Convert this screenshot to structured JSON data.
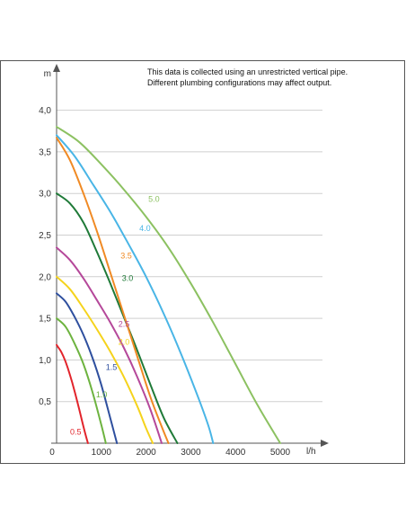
{
  "chart_data": {
    "type": "line",
    "title": "",
    "note_lines": [
      "This data is collected using an unrestricted vertical pipe.",
      "Different plumbing configurations may affect output."
    ],
    "xlabel": "l/h",
    "ylabel": "m",
    "xlim": [
      0,
      5800
    ],
    "ylim": [
      0,
      4.2
    ],
    "x_ticks": [
      {
        "value": 0,
        "label": "0"
      },
      {
        "value": 1000,
        "label": "1000"
      },
      {
        "value": 2000,
        "label": "2000"
      },
      {
        "value": 3000,
        "label": "3000"
      },
      {
        "value": 4000,
        "label": "4000"
      },
      {
        "value": 5000,
        "label": "5000"
      }
    ],
    "y_ticks": [
      {
        "value": 0.5,
        "label": "0,5"
      },
      {
        "value": 1.0,
        "label": "1,0"
      },
      {
        "value": 1.5,
        "label": "1,5"
      },
      {
        "value": 2.0,
        "label": "2,0"
      },
      {
        "value": 2.5,
        "label": "2,5"
      },
      {
        "value": 3.0,
        "label": "3,0"
      },
      {
        "value": 3.5,
        "label": "3,5"
      },
      {
        "value": 4.0,
        "label": "4,0"
      }
    ],
    "grid": "horizontal",
    "series": [
      {
        "name": "0.5",
        "color": "#e2242b",
        "x": [
          0,
          100,
          200,
          300,
          400,
          500,
          600,
          700
        ],
        "y": [
          1.18,
          1.1,
          0.98,
          0.82,
          0.63,
          0.42,
          0.2,
          0.0
        ],
        "label_at": [
          300,
          0.1
        ]
      },
      {
        "name": "1.0",
        "color": "#6db33f",
        "x": [
          0,
          200,
          400,
          600,
          800,
          1000,
          1100
        ],
        "y": [
          1.5,
          1.4,
          1.2,
          0.95,
          0.62,
          0.22,
          0.0
        ],
        "label_at": [
          880,
          0.55
        ]
      },
      {
        "name": "1.5",
        "color": "#2e4f9e",
        "x": [
          0,
          200,
          400,
          600,
          800,
          1000,
          1200,
          1350
        ],
        "y": [
          1.8,
          1.7,
          1.52,
          1.3,
          1.03,
          0.7,
          0.3,
          0.0
        ],
        "label_at": [
          1100,
          0.88
        ]
      },
      {
        "name": "2.0",
        "color": "#f5d31c",
        "x": [
          0,
          300,
          600,
          900,
          1200,
          1500,
          1800,
          2000,
          2150
        ],
        "y": [
          2.0,
          1.85,
          1.62,
          1.37,
          1.1,
          0.8,
          0.45,
          0.18,
          0.0
        ],
        "label_at": [
          1380,
          1.18
        ]
      },
      {
        "name": "2.5",
        "color": "#b5489a",
        "x": [
          0,
          300,
          600,
          900,
          1200,
          1500,
          1800,
          2100,
          2350
        ],
        "y": [
          2.35,
          2.2,
          1.98,
          1.72,
          1.45,
          1.15,
          0.8,
          0.4,
          0.0
        ],
        "label_at": [
          1380,
          1.4
        ]
      },
      {
        "name": "3.0",
        "color": "#1f7a38",
        "x": [
          0,
          300,
          600,
          900,
          1200,
          1500,
          1800,
          2100,
          2400,
          2700
        ],
        "y": [
          3.0,
          2.88,
          2.65,
          2.3,
          1.92,
          1.52,
          1.12,
          0.7,
          0.3,
          0.0
        ],
        "label_at": [
          1460,
          1.95
        ]
      },
      {
        "name": "3.5",
        "color": "#f08a24",
        "x": [
          0,
          300,
          600,
          900,
          1200,
          1500,
          1800,
          2100,
          2350,
          2500
        ],
        "y": [
          3.67,
          3.4,
          3.0,
          2.55,
          2.05,
          1.55,
          1.05,
          0.55,
          0.2,
          0.0
        ],
        "label_at": [
          1430,
          2.22
        ]
      },
      {
        "name": "4.0",
        "color": "#49b5e6",
        "x": [
          0,
          400,
          800,
          1200,
          1600,
          2000,
          2400,
          2800,
          3200,
          3400,
          3500
        ],
        "y": [
          3.7,
          3.45,
          3.12,
          2.78,
          2.4,
          2.0,
          1.55,
          1.05,
          0.5,
          0.2,
          0.0
        ],
        "label_at": [
          1850,
          2.55
        ]
      },
      {
        "name": "5.0",
        "color": "#8cc161",
        "x": [
          0,
          500,
          1000,
          1500,
          2000,
          2500,
          3000,
          3500,
          4000,
          4500,
          5000
        ],
        "y": [
          3.8,
          3.62,
          3.35,
          3.05,
          2.72,
          2.35,
          1.92,
          1.45,
          0.95,
          0.45,
          0.0
        ],
        "label_at": [
          2050,
          2.9
        ]
      }
    ]
  }
}
